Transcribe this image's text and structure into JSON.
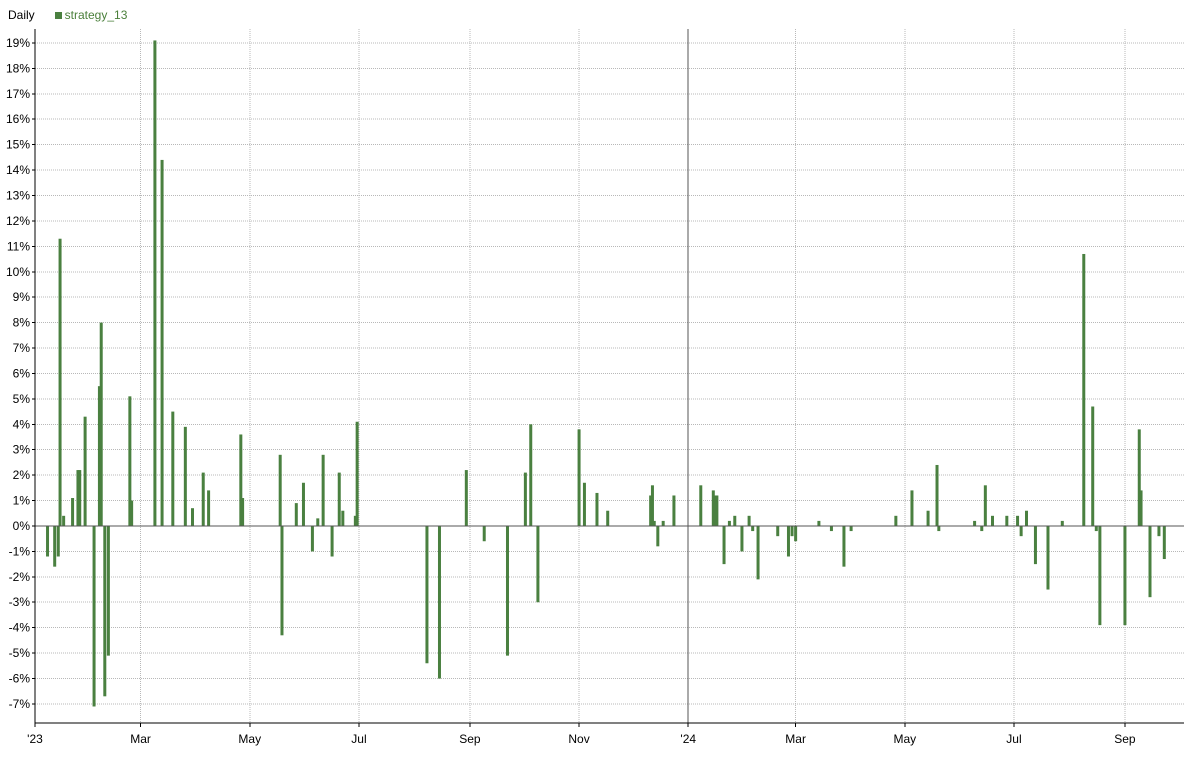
{
  "legend": {
    "period_label": "Daily",
    "series_name": "strategy_13"
  },
  "colors": {
    "bar": "#4a8040",
    "grid": "#b8b8b8",
    "axis": "#000000",
    "year_line": "#555555"
  },
  "chart_data": {
    "type": "bar",
    "series": [
      {
        "name": "strategy_13",
        "points": [
          {
            "x": "2023-01-08",
            "y": -1.2
          },
          {
            "x": "2023-01-12",
            "y": -1.6
          },
          {
            "x": "2023-01-14",
            "y": -1.2
          },
          {
            "x": "2023-01-15",
            "y": 11.3
          },
          {
            "x": "2023-01-17",
            "y": 0.4
          },
          {
            "x": "2023-01-22",
            "y": 1.1
          },
          {
            "x": "2023-01-25",
            "y": 2.2
          },
          {
            "x": "2023-01-26",
            "y": 2.2
          },
          {
            "x": "2023-01-29",
            "y": 4.3
          },
          {
            "x": "2023-02-03",
            "y": -7.1
          },
          {
            "x": "2023-02-06",
            "y": 5.5
          },
          {
            "x": "2023-02-07",
            "y": 8.0
          },
          {
            "x": "2023-02-09",
            "y": -6.7
          },
          {
            "x": "2023-02-11",
            "y": -5.1
          },
          {
            "x": "2023-02-23",
            "y": 5.1
          },
          {
            "x": "2023-02-24",
            "y": 1.0
          },
          {
            "x": "2023-03-09",
            "y": 19.1
          },
          {
            "x": "2023-03-13",
            "y": 14.4
          },
          {
            "x": "2023-03-19",
            "y": 4.5
          },
          {
            "x": "2023-03-26",
            "y": 3.9
          },
          {
            "x": "2023-03-30",
            "y": 0.7
          },
          {
            "x": "2023-04-05",
            "y": 2.1
          },
          {
            "x": "2023-04-08",
            "y": 1.4
          },
          {
            "x": "2023-04-26",
            "y": 3.6
          },
          {
            "x": "2023-04-27",
            "y": 1.1
          },
          {
            "x": "2023-05-18",
            "y": 2.8
          },
          {
            "x": "2023-05-19",
            "y": -4.3
          },
          {
            "x": "2023-05-27",
            "y": 0.9
          },
          {
            "x": "2023-05-31",
            "y": 1.7
          },
          {
            "x": "2023-06-05",
            "y": -1.0
          },
          {
            "x": "2023-06-08",
            "y": 0.3
          },
          {
            "x": "2023-06-11",
            "y": 2.8
          },
          {
            "x": "2023-06-16",
            "y": -1.2
          },
          {
            "x": "2023-06-20",
            "y": 2.1
          },
          {
            "x": "2023-06-22",
            "y": 0.6
          },
          {
            "x": "2023-06-29",
            "y": 0.4
          },
          {
            "x": "2023-06-30",
            "y": 4.1
          },
          {
            "x": "2023-08-08",
            "y": -5.4
          },
          {
            "x": "2023-08-15",
            "y": -6.0
          },
          {
            "x": "2023-08-30",
            "y": 2.2
          },
          {
            "x": "2023-09-09",
            "y": -0.6
          },
          {
            "x": "2023-09-22",
            "y": -5.1
          },
          {
            "x": "2023-10-02",
            "y": 2.1
          },
          {
            "x": "2023-10-05",
            "y": 4.0
          },
          {
            "x": "2023-10-09",
            "y": -3.0
          },
          {
            "x": "2023-11-01",
            "y": 3.8
          },
          {
            "x": "2023-11-04",
            "y": 1.7
          },
          {
            "x": "2023-11-11",
            "y": 1.3
          },
          {
            "x": "2023-11-17",
            "y": 0.6
          },
          {
            "x": "2023-12-11",
            "y": 1.2
          },
          {
            "x": "2023-12-12",
            "y": 1.6
          },
          {
            "x": "2023-12-13",
            "y": 0.2
          },
          {
            "x": "2023-12-15",
            "y": -0.8
          },
          {
            "x": "2023-12-18",
            "y": 0.2
          },
          {
            "x": "2023-12-24",
            "y": 1.2
          },
          {
            "x": "2024-01-08",
            "y": 1.6
          },
          {
            "x": "2024-01-15",
            "y": 1.4
          },
          {
            "x": "2024-01-16",
            "y": 1.2
          },
          {
            "x": "2024-01-17",
            "y": 1.2
          },
          {
            "x": "2024-01-21",
            "y": -1.5
          },
          {
            "x": "2024-01-24",
            "y": 0.2
          },
          {
            "x": "2024-01-27",
            "y": 0.4
          },
          {
            "x": "2024-01-31",
            "y": -1.0
          },
          {
            "x": "2024-02-04",
            "y": 0.4
          },
          {
            "x": "2024-02-06",
            "y": -0.2
          },
          {
            "x": "2024-02-09",
            "y": -2.1
          },
          {
            "x": "2024-02-20",
            "y": -0.4
          },
          {
            "x": "2024-02-26",
            "y": -1.2
          },
          {
            "x": "2024-02-28",
            "y": -0.4
          },
          {
            "x": "2024-03-01",
            "y": -0.6
          },
          {
            "x": "2024-03-14",
            "y": 0.2
          },
          {
            "x": "2024-03-21",
            "y": -0.2
          },
          {
            "x": "2024-03-28",
            "y": -1.6
          },
          {
            "x": "2024-04-01",
            "y": -0.2
          },
          {
            "x": "2024-04-26",
            "y": 0.4
          },
          {
            "x": "2024-05-05",
            "y": 1.4
          },
          {
            "x": "2024-05-14",
            "y": 0.6
          },
          {
            "x": "2024-05-19",
            "y": 2.4
          },
          {
            "x": "2024-05-20",
            "y": -0.2
          },
          {
            "x": "2024-06-09",
            "y": 0.2
          },
          {
            "x": "2024-06-13",
            "y": -0.2
          },
          {
            "x": "2024-06-15",
            "y": 1.6
          },
          {
            "x": "2024-06-19",
            "y": 0.4
          },
          {
            "x": "2024-06-27",
            "y": 0.4
          },
          {
            "x": "2024-07-03",
            "y": 0.4
          },
          {
            "x": "2024-07-05",
            "y": -0.4
          },
          {
            "x": "2024-07-08",
            "y": 0.6
          },
          {
            "x": "2024-07-13",
            "y": -1.5
          },
          {
            "x": "2024-07-20",
            "y": -2.5
          },
          {
            "x": "2024-07-28",
            "y": 0.2
          },
          {
            "x": "2024-08-09",
            "y": 10.7
          },
          {
            "x": "2024-08-14",
            "y": 4.7
          },
          {
            "x": "2024-08-16",
            "y": -0.2
          },
          {
            "x": "2024-08-18",
            "y": -3.9
          },
          {
            "x": "2024-09-01",
            "y": -3.9
          },
          {
            "x": "2024-09-09",
            "y": 3.8
          },
          {
            "x": "2024-09-10",
            "y": 1.4
          },
          {
            "x": "2024-09-15",
            "y": -2.8
          },
          {
            "x": "2024-09-20",
            "y": -0.4
          },
          {
            "x": "2024-09-23",
            "y": -1.3
          }
        ]
      }
    ],
    "x_ticks": [
      {
        "date": "2023-01-01",
        "label": "'23"
      },
      {
        "date": "2023-03-01",
        "label": "Mar"
      },
      {
        "date": "2023-05-01",
        "label": "May"
      },
      {
        "date": "2023-07-01",
        "label": "Jul"
      },
      {
        "date": "2023-09-01",
        "label": "Sep"
      },
      {
        "date": "2023-11-01",
        "label": "Nov"
      },
      {
        "date": "2024-01-01",
        "label": "'24"
      },
      {
        "date": "2024-03-01",
        "label": "Mar"
      },
      {
        "date": "2024-05-01",
        "label": "May"
      },
      {
        "date": "2024-07-01",
        "label": "Jul"
      },
      {
        "date": "2024-09-01",
        "label": "Sep"
      }
    ],
    "y_ticks": [
      -7,
      -6,
      -5,
      -4,
      -3,
      -2,
      -1,
      0,
      1,
      2,
      3,
      4,
      5,
      6,
      7,
      8,
      9,
      10,
      11,
      12,
      13,
      14,
      15,
      16,
      17,
      18,
      19
    ],
    "y_tick_suffix": "%",
    "xlim": [
      "2023-01-01",
      "2024-10-04"
    ],
    "ylim": [
      -7.75,
      19.55
    ],
    "grid": true,
    "legend_position": "top-left"
  }
}
